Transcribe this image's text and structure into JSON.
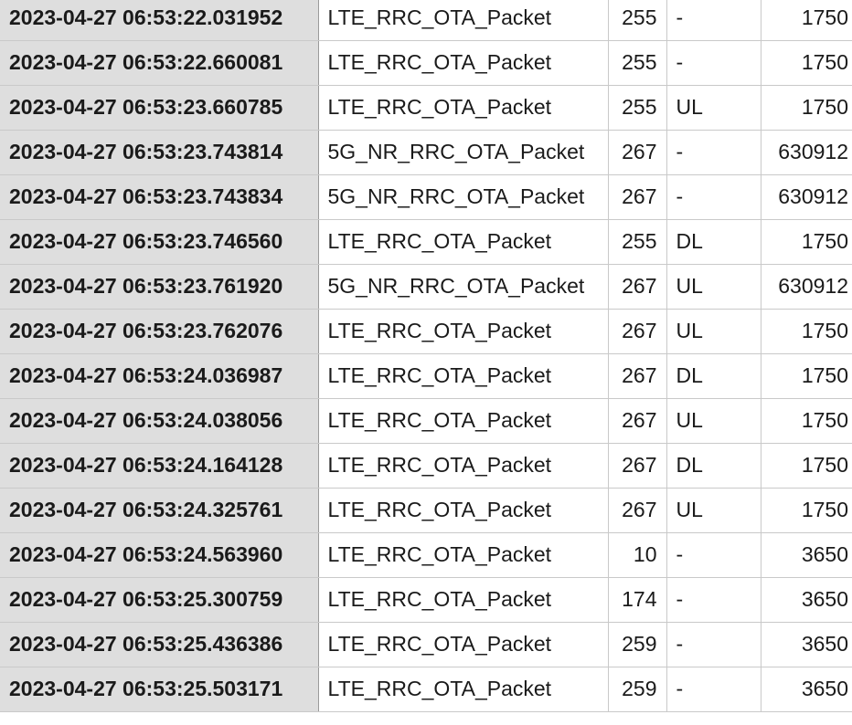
{
  "rows": [
    {
      "time": "2023-04-27 06:53:22.031952",
      "type": "LTE_RRC_OTA_Packet",
      "len": "255",
      "dir": "-",
      "freq": "1750"
    },
    {
      "time": "2023-04-27 06:53:22.660081",
      "type": "LTE_RRC_OTA_Packet",
      "len": "255",
      "dir": "-",
      "freq": "1750"
    },
    {
      "time": "2023-04-27 06:53:23.660785",
      "type": "LTE_RRC_OTA_Packet",
      "len": "255",
      "dir": "UL",
      "freq": "1750"
    },
    {
      "time": "2023-04-27 06:53:23.743814",
      "type": "5G_NR_RRC_OTA_Packet",
      "len": "267",
      "dir": "-",
      "freq": "630912"
    },
    {
      "time": "2023-04-27 06:53:23.743834",
      "type": "5G_NR_RRC_OTA_Packet",
      "len": "267",
      "dir": "-",
      "freq": "630912"
    },
    {
      "time": "2023-04-27 06:53:23.746560",
      "type": "LTE_RRC_OTA_Packet",
      "len": "255",
      "dir": "DL",
      "freq": "1750"
    },
    {
      "time": "2023-04-27 06:53:23.761920",
      "type": "5G_NR_RRC_OTA_Packet",
      "len": "267",
      "dir": "UL",
      "freq": "630912"
    },
    {
      "time": "2023-04-27 06:53:23.762076",
      "type": "LTE_RRC_OTA_Packet",
      "len": "267",
      "dir": "UL",
      "freq": "1750"
    },
    {
      "time": "2023-04-27 06:53:24.036987",
      "type": "LTE_RRC_OTA_Packet",
      "len": "267",
      "dir": "DL",
      "freq": "1750"
    },
    {
      "time": "2023-04-27 06:53:24.038056",
      "type": "LTE_RRC_OTA_Packet",
      "len": "267",
      "dir": "UL",
      "freq": "1750"
    },
    {
      "time": "2023-04-27 06:53:24.164128",
      "type": "LTE_RRC_OTA_Packet",
      "len": "267",
      "dir": "DL",
      "freq": "1750"
    },
    {
      "time": "2023-04-27 06:53:24.325761",
      "type": "LTE_RRC_OTA_Packet",
      "len": "267",
      "dir": "UL",
      "freq": "1750"
    },
    {
      "time": "2023-04-27 06:53:24.563960",
      "type": "LTE_RRC_OTA_Packet",
      "len": "10",
      "dir": "-",
      "freq": "3650"
    },
    {
      "time": "2023-04-27 06:53:25.300759",
      "type": "LTE_RRC_OTA_Packet",
      "len": "174",
      "dir": "-",
      "freq": "3650"
    },
    {
      "time": "2023-04-27 06:53:25.436386",
      "type": "LTE_RRC_OTA_Packet",
      "len": "259",
      "dir": "-",
      "freq": "3650"
    },
    {
      "time": "2023-04-27 06:53:25.503171",
      "type": "LTE_RRC_OTA_Packet",
      "len": "259",
      "dir": "-",
      "freq": "3650"
    }
  ]
}
